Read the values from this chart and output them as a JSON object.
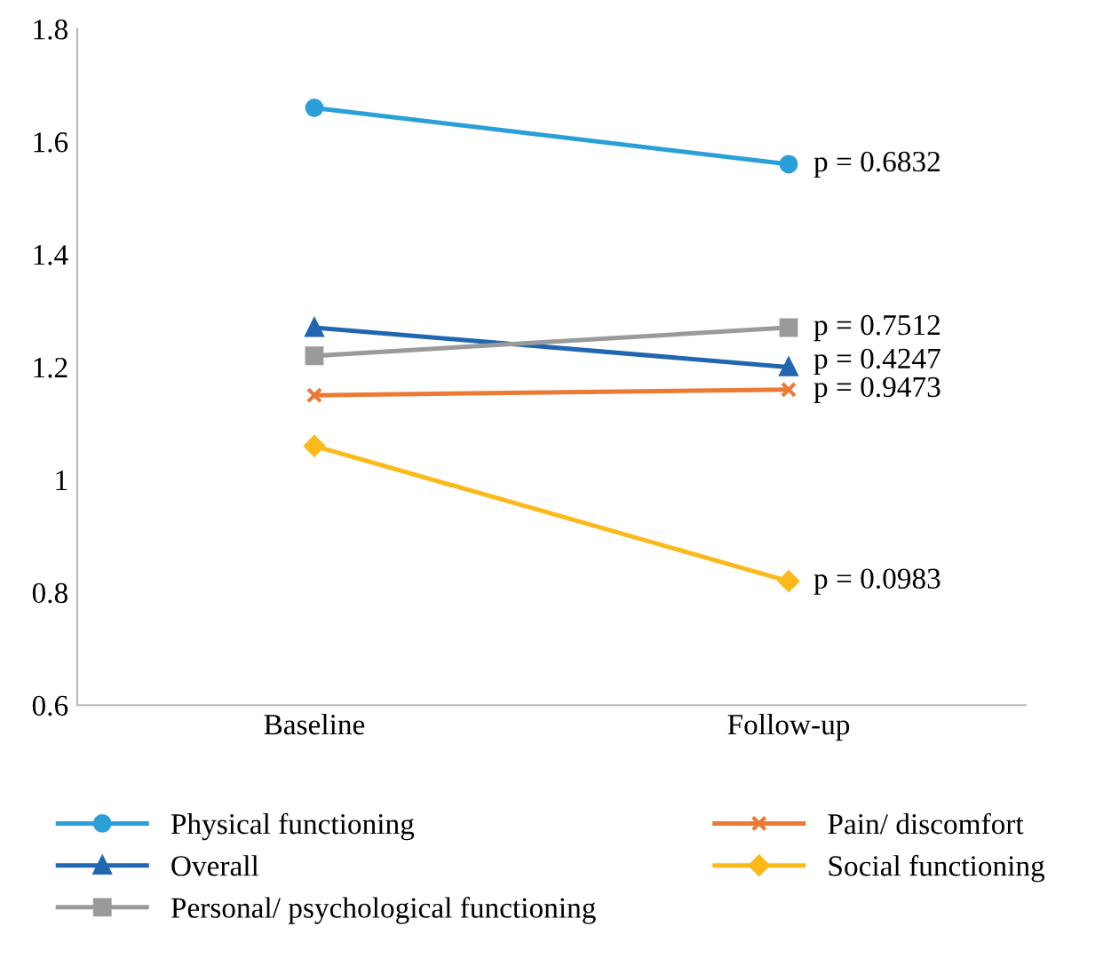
{
  "chart_data": {
    "type": "line",
    "categories": [
      "Baseline",
      "Follow-up"
    ],
    "series": [
      {
        "name": "Physical functioning",
        "color": "#2a9fd8",
        "values": [
          1.66,
          1.56
        ],
        "marker": "circle"
      },
      {
        "name": "Overall",
        "color": "#2166b0",
        "values": [
          1.27,
          1.2
        ],
        "marker": "triangle"
      },
      {
        "name": "Personal/ psychological functioning",
        "color": "#9a9a9a",
        "values": [
          1.22,
          1.27
        ],
        "marker": "square"
      },
      {
        "name": "Pain/ discomfort",
        "color": "#ec7a35",
        "values": [
          1.15,
          1.16
        ],
        "marker": "cross"
      },
      {
        "name": "Social functioning",
        "color": "#fbb91a",
        "values": [
          1.06,
          0.82
        ],
        "marker": "diamond"
      }
    ],
    "ylim": [
      0.6,
      1.8
    ],
    "yticks": [
      0.6,
      0.8,
      1,
      1.2,
      1.4,
      1.6,
      1.8
    ],
    "grid": false,
    "legend": "bottom",
    "line_style": "solid",
    "annotations": [
      {
        "text": "p = 0.6832",
        "x": "Follow-up",
        "y": 1.56
      },
      {
        "text": "p = 0.7512",
        "x": "Follow-up",
        "y": 1.27
      },
      {
        "text": "p = 0.4247",
        "x": "Follow-up",
        "y": 1.2
      },
      {
        "text": "p = 0.9473",
        "x": "Follow-up",
        "y": 1.16
      },
      {
        "text": "p = 0.0983",
        "x": "Follow-up",
        "y": 0.82
      }
    ]
  }
}
